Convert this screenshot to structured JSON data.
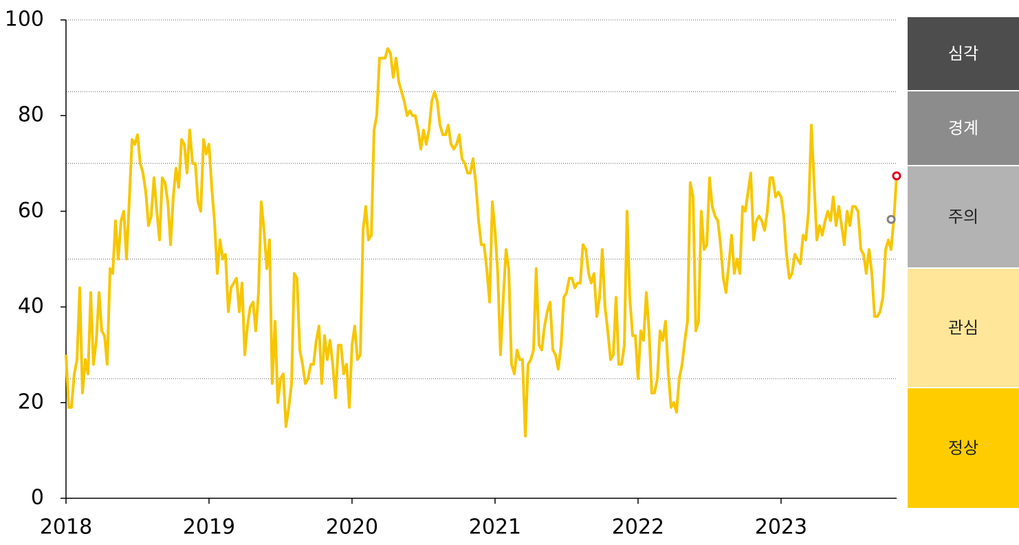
{
  "chart_data": {
    "type": "line",
    "color": "#f7c600",
    "xlim": [
      2018,
      2023.808
    ],
    "xticks": [
      2018,
      2019,
      2020,
      2021,
      2022,
      2023
    ],
    "ylim": [
      0,
      100
    ],
    "yticks": [
      0,
      20,
      40,
      60,
      80,
      100
    ],
    "hlines": [
      100,
      85,
      70,
      50,
      25
    ],
    "zones": [
      {
        "label": "심각",
        "color": "#4d4d4d"
      },
      {
        "label": "경계",
        "color": "#8c8c8c"
      },
      {
        "label": "주의",
        "color": "#b3b3b3"
      },
      {
        "label": "관심",
        "color": "#ffe699"
      },
      {
        "label": "정상",
        "color": "#ffcc00"
      }
    ],
    "markers": [
      {
        "x": 2023.77,
        "value": 58.3,
        "color": "#808080"
      },
      {
        "x": 2023.808,
        "value": 67.4,
        "color": "#e0001b"
      }
    ],
    "x": [
      2018,
      2018.019,
      2018.038,
      2018.058,
      2018.077,
      2018.096,
      2018.115,
      2018.135,
      2018.154,
      2018.173,
      2018.192,
      2018.212,
      2018.231,
      2018.25,
      2018.269,
      2018.288,
      2018.308,
      2018.327,
      2018.346,
      2018.365,
      2018.385,
      2018.404,
      2018.423,
      2018.442,
      2018.462,
      2018.481,
      2018.5,
      2018.519,
      2018.538,
      2018.558,
      2018.577,
      2018.596,
      2018.615,
      2018.635,
      2018.654,
      2018.673,
      2018.692,
      2018.712,
      2018.731,
      2018.75,
      2018.769,
      2018.788,
      2018.808,
      2018.827,
      2018.846,
      2018.865,
      2018.885,
      2018.904,
      2018.923,
      2018.942,
      2018.962,
      2018.981,
      2019,
      2019.019,
      2019.038,
      2019.058,
      2019.077,
      2019.096,
      2019.115,
      2019.135,
      2019.154,
      2019.173,
      2019.192,
      2019.212,
      2019.231,
      2019.25,
      2019.269,
      2019.288,
      2019.308,
      2019.327,
      2019.346,
      2019.365,
      2019.385,
      2019.404,
      2019.423,
      2019.442,
      2019.462,
      2019.481,
      2019.5,
      2019.519,
      2019.538,
      2019.558,
      2019.577,
      2019.596,
      2019.615,
      2019.635,
      2019.654,
      2019.673,
      2019.692,
      2019.712,
      2019.731,
      2019.75,
      2019.769,
      2019.788,
      2019.808,
      2019.827,
      2019.846,
      2019.865,
      2019.885,
      2019.904,
      2019.923,
      2019.942,
      2019.962,
      2019.981,
      2020,
      2020.019,
      2020.038,
      2020.058,
      2020.077,
      2020.096,
      2020.115,
      2020.135,
      2020.154,
      2020.173,
      2020.192,
      2020.212,
      2020.231,
      2020.25,
      2020.269,
      2020.288,
      2020.308,
      2020.327,
      2020.346,
      2020.365,
      2020.385,
      2020.404,
      2020.423,
      2020.442,
      2020.462,
      2020.481,
      2020.5,
      2020.519,
      2020.538,
      2020.558,
      2020.577,
      2020.596,
      2020.615,
      2020.635,
      2020.654,
      2020.673,
      2020.692,
      2020.712,
      2020.731,
      2020.75,
      2020.769,
      2020.788,
      2020.808,
      2020.827,
      2020.846,
      2020.865,
      2020.885,
      2020.904,
      2020.923,
      2020.942,
      2020.962,
      2020.981,
      2021,
      2021.019,
      2021.038,
      2021.058,
      2021.077,
      2021.096,
      2021.115,
      2021.135,
      2021.154,
      2021.173,
      2021.192,
      2021.212,
      2021.231,
      2021.25,
      2021.269,
      2021.288,
      2021.308,
      2021.327,
      2021.346,
      2021.365,
      2021.385,
      2021.404,
      2021.423,
      2021.442,
      2021.462,
      2021.481,
      2021.5,
      2021.519,
      2021.538,
      2021.558,
      2021.577,
      2021.596,
      2021.615,
      2021.635,
      2021.654,
      2021.673,
      2021.692,
      2021.712,
      2021.731,
      2021.75,
      2021.769,
      2021.788,
      2021.808,
      2021.827,
      2021.846,
      2021.865,
      2021.885,
      2021.904,
      2021.923,
      2021.942,
      2021.962,
      2021.981,
      2022,
      2022.019,
      2022.038,
      2022.058,
      2022.077,
      2022.096,
      2022.115,
      2022.135,
      2022.154,
      2022.173,
      2022.192,
      2022.212,
      2022.231,
      2022.25,
      2022.269,
      2022.288,
      2022.308,
      2022.327,
      2022.346,
      2022.365,
      2022.385,
      2022.404,
      2022.423,
      2022.442,
      2022.462,
      2022.481,
      2022.5,
      2022.519,
      2022.538,
      2022.558,
      2022.577,
      2022.596,
      2022.615,
      2022.635,
      2022.654,
      2022.673,
      2022.692,
      2022.712,
      2022.731,
      2022.75,
      2022.769,
      2022.788,
      2022.808,
      2022.827,
      2022.846,
      2022.865,
      2022.885,
      2022.904,
      2022.923,
      2022.942,
      2022.962,
      2022.981,
      2023,
      2023.019,
      2023.038,
      2023.058,
      2023.077,
      2023.096,
      2023.115,
      2023.135,
      2023.154,
      2023.173,
      2023.192,
      2023.212,
      2023.231,
      2023.25,
      2023.269,
      2023.288,
      2023.308,
      2023.327,
      2023.346,
      2023.365,
      2023.385,
      2023.404,
      2023.423,
      2023.442,
      2023.462,
      2023.481,
      2023.5,
      2023.519,
      2023.538,
      2023.558,
      2023.577,
      2023.596,
      2023.615,
      2023.635,
      2023.654,
      2023.673,
      2023.692,
      2023.712,
      2023.731,
      2023.75,
      2023.769,
      2023.788,
      2023.808
    ],
    "values": [
      30,
      19,
      19,
      26,
      29,
      44,
      22,
      29,
      26,
      43,
      28,
      33,
      43,
      35,
      34,
      28,
      48,
      47,
      58,
      50,
      58,
      60,
      50,
      62,
      75,
      74,
      76,
      70,
      68,
      64,
      57,
      59,
      67,
      60,
      54,
      67,
      66,
      62,
      53,
      63,
      69,
      65,
      75,
      74,
      68,
      77,
      70,
      70,
      62,
      60,
      75,
      72,
      74,
      65,
      58,
      47,
      54,
      50,
      51,
      39,
      44,
      45,
      46,
      39,
      45,
      30,
      36,
      40,
      41,
      35,
      43,
      62,
      56,
      48,
      54,
      24,
      37,
      20,
      25,
      26,
      15,
      19,
      24,
      47,
      46,
      31,
      28,
      24,
      25,
      28,
      28,
      33,
      36,
      24,
      34,
      29,
      33,
      28,
      21,
      32,
      32,
      26,
      28,
      19,
      32,
      36,
      29,
      30,
      56,
      61,
      54,
      55,
      77,
      80,
      92,
      92,
      92,
      94,
      93,
      88,
      92,
      87,
      85,
      83,
      80,
      81,
      80,
      80,
      77,
      73,
      77,
      74,
      77,
      83,
      85,
      83,
      78,
      76,
      76,
      78,
      74,
      73,
      74,
      76,
      71,
      70,
      68,
      68,
      71,
      66,
      58,
      53,
      53,
      48,
      41,
      62,
      56,
      47,
      30,
      42,
      52,
      48,
      28,
      26,
      31,
      29,
      29,
      13,
      28,
      29,
      31,
      48,
      32,
      31,
      36,
      39,
      41,
      31,
      30,
      27,
      32,
      42,
      43,
      46,
      46,
      44,
      45,
      45,
      53,
      52,
      47,
      45,
      47,
      38,
      42,
      52,
      40,
      35,
      29,
      30,
      42,
      28,
      28,
      32,
      60,
      42,
      34,
      34,
      25,
      35,
      33,
      43,
      35,
      22,
      22,
      25,
      35,
      33,
      37,
      26,
      19,
      20,
      18,
      25,
      28,
      33,
      37,
      66,
      63,
      35,
      37,
      60,
      52,
      53,
      67,
      61,
      59,
      58,
      53,
      46,
      43,
      49,
      55,
      47,
      50,
      47,
      61,
      60,
      64,
      68,
      54,
      58,
      59,
      58,
      56,
      60,
      67,
      67,
      63,
      64,
      63,
      59,
      51,
      46,
      47,
      51,
      50,
      49,
      55,
      54,
      60,
      78,
      66,
      54,
      57,
      55,
      58,
      60,
      58,
      63,
      57,
      61,
      57,
      53,
      60,
      57,
      61,
      61,
      60,
      52,
      51,
      47,
      52,
      47,
      38,
      38,
      39,
      42,
      52,
      54,
      52,
      58,
      67.4
    ]
  }
}
